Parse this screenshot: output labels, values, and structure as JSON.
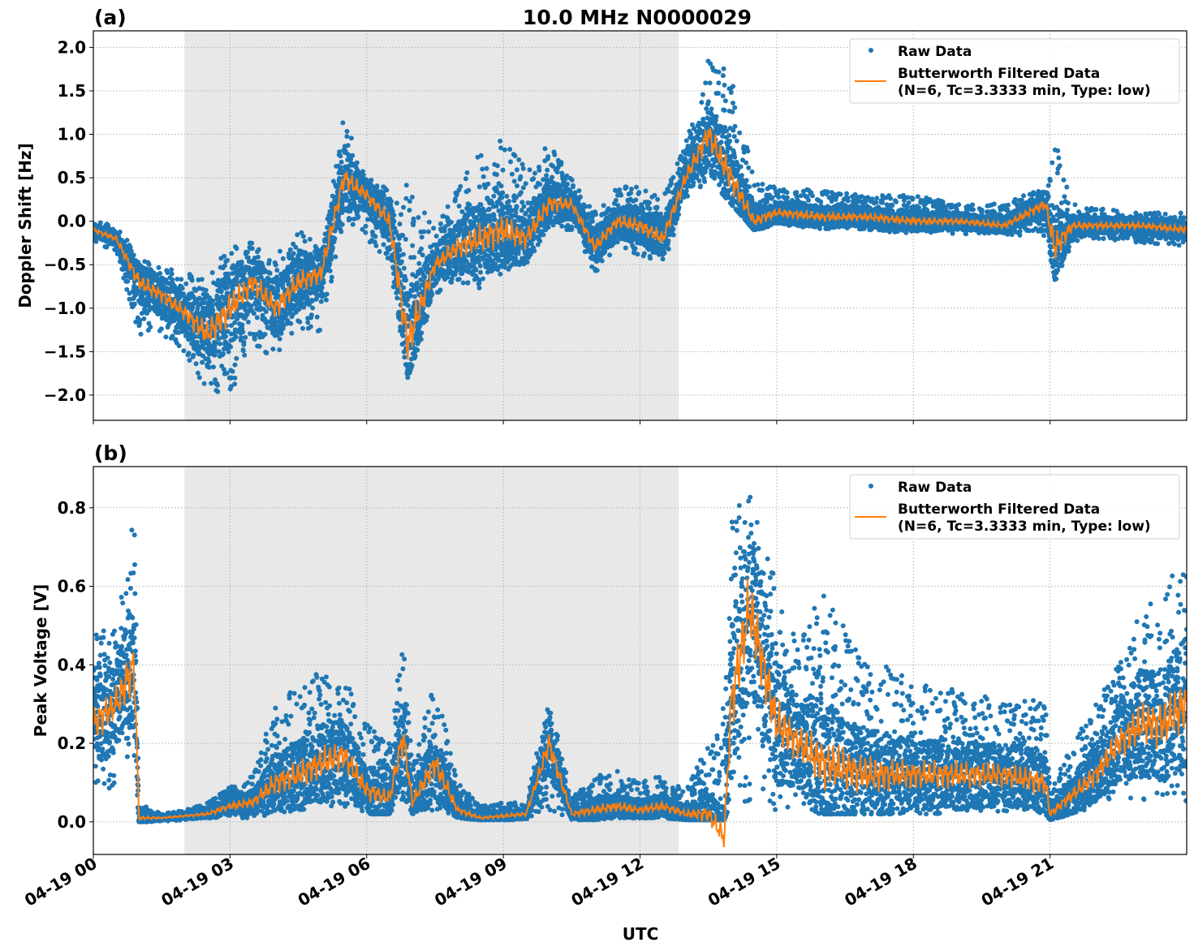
{
  "chart_data": [
    {
      "type": "scatter",
      "panel_label": "(a)",
      "title": "10.0 MHz N0000029",
      "xlabel": "",
      "ylabel": "Doppler Shift [Hz]",
      "xlim_hours": [
        0,
        24
      ],
      "ylim": [
        -2.29,
        2.19
      ],
      "yticks": [
        -2.0,
        -1.5,
        -1.0,
        -0.5,
        0.0,
        0.5,
        1.0,
        1.5,
        2.0
      ],
      "ytick_labels": [
        "−2.0",
        "−1.5",
        "−1.0",
        "−0.5",
        "0.0",
        "0.5",
        "1.0",
        "1.5",
        "2.0"
      ],
      "grid": true,
      "shaded_region_hours": [
        2.0,
        12.85
      ],
      "legend": {
        "placement": "top-right",
        "entries": [
          "Raw Data",
          "Butterworth Filtered Data",
          "(N=6, Tc=3.3333 min, Type: low)"
        ]
      },
      "series": [
        {
          "name": "Raw Data",
          "style": "points",
          "color": "#1f77b4",
          "note_hours_x": "x",
          "x": [
            0,
            0.5,
            1.0,
            1.5,
            2.0,
            2.5,
            3.0,
            3.5,
            4.0,
            4.5,
            5.0,
            5.5,
            6.0,
            6.5,
            6.9,
            7.5,
            8.0,
            8.5,
            9.0,
            9.5,
            10.0,
            10.5,
            11.0,
            11.5,
            12.0,
            12.5,
            13.0,
            13.5,
            14.0,
            14.5,
            15.0,
            16,
            17,
            18,
            19,
            20,
            20.9,
            21.1,
            21.5,
            22,
            23,
            24
          ],
          "low": [
            -0.25,
            -0.35,
            -1.3,
            -1.3,
            -1.5,
            -2.0,
            -2.0,
            -1.4,
            -1.6,
            -1.3,
            -1.3,
            0.0,
            -0.2,
            -0.5,
            -1.8,
            -0.9,
            -0.7,
            -0.8,
            -0.6,
            -0.5,
            -0.1,
            -0.1,
            -0.6,
            -0.3,
            -0.4,
            -0.5,
            0.2,
            0.5,
            0.2,
            -0.1,
            -0.05,
            -0.1,
            -0.1,
            -0.15,
            -0.15,
            -0.15,
            -0.2,
            -0.7,
            -0.25,
            -0.2,
            -0.25,
            -0.3
          ],
          "high": [
            0.0,
            -0.05,
            -0.4,
            -0.5,
            -0.6,
            -0.6,
            -0.3,
            -0.2,
            -0.4,
            -0.1,
            -0.3,
            1.2,
            0.5,
            0.4,
            0.5,
            -0.1,
            0.4,
            0.8,
            1.0,
            0.6,
            0.9,
            0.5,
            0.1,
            0.4,
            0.4,
            0.3,
            1.0,
            1.9,
            1.7,
            0.5,
            0.4,
            0.35,
            0.3,
            0.3,
            0.2,
            0.2,
            0.4,
            1.0,
            0.2,
            0.15,
            0.1,
            0.1
          ]
        },
        {
          "name": "Butterworth Filtered Data",
          "style": "line",
          "color": "#ff7f0e",
          "x": [
            0,
            0.5,
            1.0,
            1.5,
            2.0,
            2.5,
            3.0,
            3.5,
            4.0,
            4.5,
            5.0,
            5.5,
            6.0,
            6.5,
            6.9,
            7.5,
            8.0,
            8.5,
            9.0,
            9.5,
            10.0,
            10.5,
            11.0,
            11.5,
            12.0,
            12.5,
            13.0,
            13.5,
            14.0,
            14.5,
            15.0,
            16,
            17,
            18,
            19,
            20,
            20.9,
            21.1,
            21.5,
            22,
            23,
            24
          ],
          "y": [
            -0.1,
            -0.2,
            -0.7,
            -0.85,
            -1.05,
            -1.3,
            -1.0,
            -0.7,
            -1.0,
            -0.7,
            -0.6,
            0.5,
            0.3,
            0.0,
            -1.4,
            -0.5,
            -0.3,
            -0.2,
            -0.1,
            -0.2,
            0.2,
            0.2,
            -0.3,
            0.0,
            -0.05,
            -0.2,
            0.5,
            1.0,
            0.5,
            0.0,
            0.1,
            0.05,
            0.05,
            0.0,
            0.0,
            -0.05,
            0.2,
            -0.3,
            -0.05,
            -0.05,
            -0.05,
            -0.1
          ]
        }
      ]
    },
    {
      "type": "scatter",
      "panel_label": "(b)",
      "title": "",
      "xlabel": "UTC",
      "ylabel": "Peak Voltage [V]",
      "xlim_hours": [
        0,
        24
      ],
      "xticks": [
        "04-19 00",
        "04-19 03",
        "04-19 06",
        "04-19 09",
        "04-19 12",
        "04-19 15",
        "04-19 18",
        "04-19 21"
      ],
      "ylim": [
        -0.083,
        0.905
      ],
      "yticks": [
        0.0,
        0.2,
        0.4,
        0.6,
        0.8
      ],
      "ytick_labels": [
        "0.0",
        "0.2",
        "0.4",
        "0.6",
        "0.8"
      ],
      "grid": true,
      "shaded_region_hours": [
        2.0,
        12.85
      ],
      "legend": {
        "placement": "top-right",
        "entries": [
          "Raw Data",
          "Butterworth Filtered Data",
          "(N=6, Tc=3.3333 min, Type: low)"
        ]
      },
      "series": [
        {
          "name": "Raw Data",
          "style": "points",
          "color": "#1f77b4",
          "x": [
            0,
            0.5,
            0.9,
            1.0,
            1.5,
            2.0,
            2.5,
            3.0,
            3.5,
            4.0,
            4.5,
            5.0,
            5.5,
            6.0,
            6.5,
            6.8,
            7.0,
            7.5,
            8.0,
            8.5,
            9.0,
            9.5,
            10.0,
            10.5,
            11.0,
            11.5,
            12.0,
            12.5,
            13.0,
            13.5,
            13.85,
            14.0,
            14.4,
            15.0,
            15.5,
            16,
            17,
            18,
            19,
            20,
            20.9,
            21.0,
            21.5,
            22,
            22.5,
            23,
            23.5,
            24
          ],
          "low": [
            0.05,
            0.1,
            0.15,
            0.0,
            0.0,
            0.005,
            0.01,
            0.01,
            0.01,
            0.02,
            0.03,
            0.03,
            0.03,
            0.02,
            0.02,
            0.05,
            0.02,
            0.03,
            0.01,
            0.005,
            0.005,
            0.005,
            0.03,
            0.005,
            0.005,
            0.01,
            0.01,
            0.01,
            0.005,
            0.005,
            0.005,
            0.05,
            0.05,
            0.03,
            0.03,
            0.02,
            0.02,
            0.02,
            0.02,
            0.02,
            0.02,
            0.005,
            0.02,
            0.03,
            0.05,
            0.05,
            0.05,
            0.05
          ],
          "high": [
            0.48,
            0.5,
            0.8,
            0.05,
            0.02,
            0.03,
            0.05,
            0.1,
            0.12,
            0.3,
            0.35,
            0.4,
            0.37,
            0.25,
            0.2,
            0.48,
            0.15,
            0.36,
            0.1,
            0.04,
            0.05,
            0.05,
            0.32,
            0.06,
            0.12,
            0.13,
            0.1,
            0.12,
            0.08,
            0.2,
            0.3,
            0.77,
            0.86,
            0.6,
            0.45,
            0.6,
            0.45,
            0.35,
            0.35,
            0.3,
            0.32,
            0.08,
            0.2,
            0.3,
            0.4,
            0.55,
            0.6,
            0.68
          ]
        },
        {
          "name": "Butterworth Filtered Data",
          "style": "line",
          "color": "#ff7f0e",
          "x": [
            0,
            0.5,
            0.9,
            1.0,
            1.5,
            2.0,
            2.5,
            3.0,
            3.5,
            4.0,
            4.5,
            5.0,
            5.5,
            6.0,
            6.5,
            6.8,
            7.0,
            7.5,
            8.0,
            8.5,
            9.0,
            9.5,
            10.0,
            10.5,
            11.0,
            11.5,
            12.0,
            12.5,
            13.0,
            13.5,
            13.85,
            14.0,
            14.4,
            15.0,
            15.5,
            16,
            17,
            18,
            19,
            20,
            20.9,
            21.0,
            21.5,
            22,
            22.5,
            23,
            23.5,
            24
          ],
          "y": [
            0.25,
            0.3,
            0.4,
            0.01,
            0.01,
            0.015,
            0.02,
            0.04,
            0.05,
            0.1,
            0.12,
            0.15,
            0.17,
            0.08,
            0.06,
            0.22,
            0.05,
            0.15,
            0.03,
            0.01,
            0.015,
            0.02,
            0.2,
            0.02,
            0.03,
            0.04,
            0.03,
            0.04,
            0.02,
            0.02,
            -0.04,
            0.3,
            0.55,
            0.25,
            0.2,
            0.15,
            0.12,
            0.12,
            0.12,
            0.12,
            0.1,
            0.02,
            0.07,
            0.12,
            0.2,
            0.25,
            0.25,
            0.3
          ]
        }
      ]
    }
  ]
}
